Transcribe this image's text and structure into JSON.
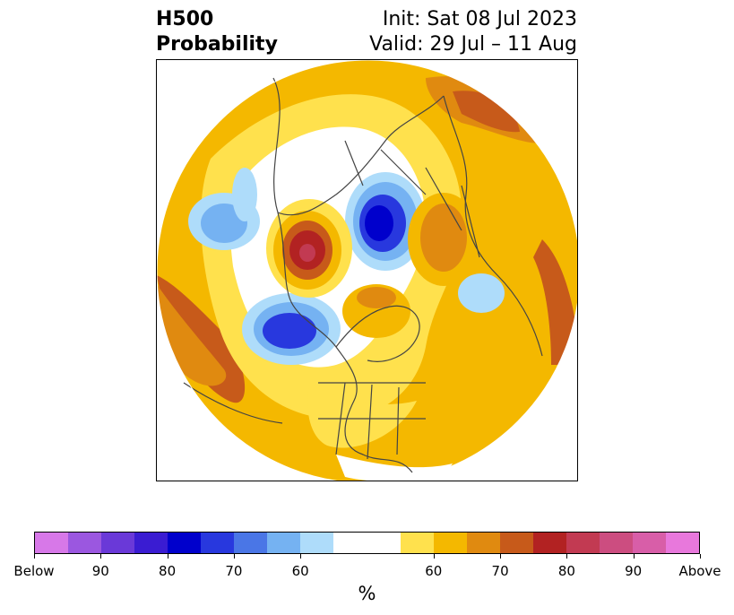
{
  "header": {
    "title_line1": "H500",
    "title_line2": "Probability",
    "init_text": "Init: Sat 08 Jul 2023",
    "valid_text": "Valid: 29 Jul – 11 Aug"
  },
  "map": {
    "projection": "north-polar-stereographic",
    "features": [
      "coastlines",
      "country-borders",
      "us-state-borders"
    ]
  },
  "colorbar": {
    "label": "%",
    "segments": [
      {
        "color": "#d778e8",
        "weight": 1
      },
      {
        "color": "#9b57e0",
        "weight": 1
      },
      {
        "color": "#6a39d8",
        "weight": 1
      },
      {
        "color": "#3a1cd2",
        "weight": 1
      },
      {
        "color": "#0000cc",
        "weight": 1
      },
      {
        "color": "#2838de",
        "weight": 1
      },
      {
        "color": "#4a76e6",
        "weight": 1
      },
      {
        "color": "#75b2f2",
        "weight": 1
      },
      {
        "color": "#aedcfa",
        "weight": 1
      },
      {
        "color": "#ffffff",
        "weight": 2
      },
      {
        "color": "#ffe14d",
        "weight": 1
      },
      {
        "color": "#f4b800",
        "weight": 1
      },
      {
        "color": "#e08a10",
        "weight": 1
      },
      {
        "color": "#c75a1a",
        "weight": 1
      },
      {
        "color": "#b22222",
        "weight": 1
      },
      {
        "color": "#c23a52",
        "weight": 1
      },
      {
        "color": "#cc4d80",
        "weight": 1
      },
      {
        "color": "#d85ea8",
        "weight": 1
      },
      {
        "color": "#e878dc",
        "weight": 1
      }
    ],
    "ticks": [
      "Below",
      "90",
      "80",
      "70",
      "60",
      "60",
      "70",
      "80",
      "90",
      "Above"
    ]
  },
  "colors": {
    "below_strong": "#0000cc",
    "below_mid": "#4a76e6",
    "below_light": "#aedcfa",
    "above_light": "#ffe14d",
    "above_mid": "#f4b800",
    "above_orange": "#e08a10",
    "above_strong": "#c75a1a",
    "above_red": "#b22222",
    "above_max": "#c23a52",
    "coastline": "#444444"
  }
}
